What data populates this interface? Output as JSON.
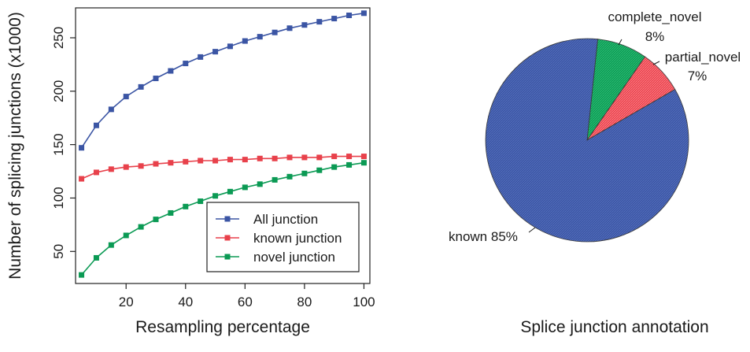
{
  "chart_data": [
    {
      "type": "line",
      "title": "",
      "xlabel": "Resampling percentage",
      "ylabel": "Number of splicing junctions (x1000)",
      "xlim": [
        3,
        102
      ],
      "ylim": [
        20,
        278
      ],
      "x_ticks": [
        20,
        40,
        60,
        80,
        100
      ],
      "y_ticks": [
        50,
        100,
        150,
        200,
        250
      ],
      "grid": false,
      "legend_position": "bottom-right",
      "x": [
        5,
        10,
        15,
        20,
        25,
        30,
        35,
        40,
        45,
        50,
        55,
        60,
        65,
        70,
        75,
        80,
        85,
        90,
        95,
        100
      ],
      "series": [
        {
          "name": "All junction",
          "color": "#3b55a4",
          "marker": "square",
          "values": [
            147,
            168,
            183,
            195,
            204,
            212,
            219,
            226,
            232,
            237,
            242,
            247,
            251,
            255,
            259,
            262,
            265,
            268,
            271,
            273
          ]
        },
        {
          "name": "known junction",
          "color": "#e8414b",
          "marker": "square",
          "values": [
            118,
            124,
            127,
            129,
            130,
            132,
            133,
            134,
            135,
            135,
            136,
            136,
            137,
            137,
            138,
            138,
            138,
            139,
            139,
            139
          ]
        },
        {
          "name": "novel junction",
          "color": "#0b9a54",
          "marker": "square",
          "values": [
            28,
            44,
            56,
            65,
            73,
            80,
            86,
            92,
            97,
            102,
            106,
            110,
            113,
            117,
            120,
            123,
            126,
            129,
            131,
            133
          ]
        }
      ]
    },
    {
      "type": "pie",
      "title": "Splice junction annotation",
      "slices": [
        {
          "label": "known",
          "label_text": "known 85%",
          "value": 85,
          "color": "#3b55a4"
        },
        {
          "label": "complete_novel",
          "label_text": "complete_novel",
          "pct_text": "8%",
          "value": 8,
          "color": "#0b9a54"
        },
        {
          "label": "partial_novel",
          "label_text": "partial_novel",
          "pct_text": "7%",
          "value": 7,
          "color": "#e8414b"
        }
      ]
    }
  ]
}
